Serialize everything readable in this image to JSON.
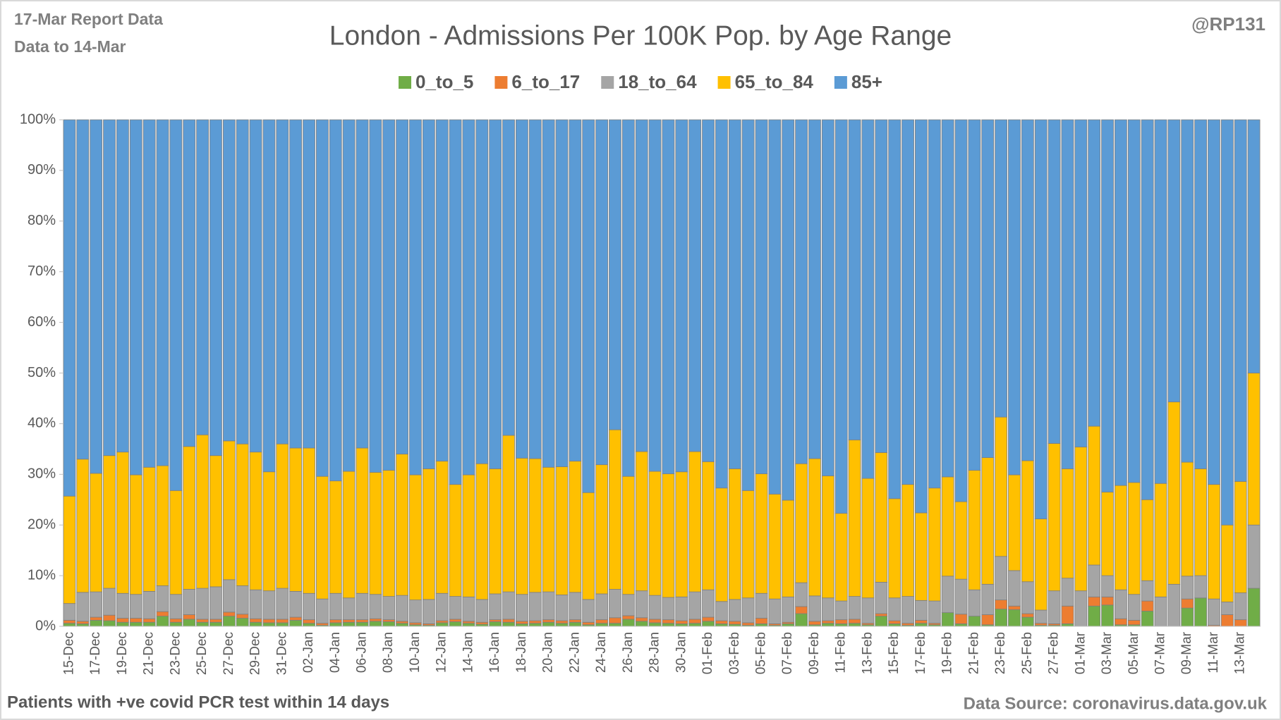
{
  "chart_data": {
    "type": "stacked_bar_percent",
    "title": "London - Admissions Per 100K Pop. by Age Range",
    "annotations": [
      "17-Mar Report Data",
      "Data to 14-Mar",
      "@RP131",
      "Patients with  +ve covid PCR test within 14 days",
      "Data Source: coronavirus.data.gov.uk"
    ],
    "categories": [
      "15-Dec",
      null,
      "17-Dec",
      null,
      "19-Dec",
      null,
      "21-Dec",
      null,
      "23-Dec",
      null,
      "25-Dec",
      null,
      "27-Dec",
      null,
      "29-Dec",
      null,
      "31-Dec",
      null,
      "02-Jan",
      null,
      "04-Jan",
      null,
      "06-Jan",
      null,
      "08-Jan",
      null,
      "10-Jan",
      null,
      "12-Jan",
      null,
      "14-Jan",
      null,
      "16-Jan",
      null,
      "18-Jan",
      null,
      "20-Jan",
      null,
      "22-Jan",
      null,
      "24-Jan",
      null,
      "26-Jan",
      null,
      "28-Jan",
      null,
      "30-Jan",
      null,
      "01-Feb",
      null,
      "03-Feb",
      null,
      "05-Feb",
      null,
      "07-Feb",
      null,
      "09-Feb",
      null,
      "11-Feb",
      null,
      "13-Feb",
      null,
      "15-Feb",
      null,
      "17-Feb",
      null,
      "19-Feb",
      null,
      "21-Feb",
      null,
      "23-Feb",
      null,
      "25-Feb",
      null,
      "27-Feb",
      null,
      "01-Mar",
      null,
      "03-Mar",
      null,
      "05-Mar",
      null,
      "07-Mar",
      null,
      "09-Mar",
      null,
      "11-Mar",
      null,
      "13-Mar",
      null
    ],
    "series": [
      {
        "name": "0_to_5",
        "color": "#70ad47",
        "values": [
          0.6,
          0.5,
          1.2,
          1.1,
          0.8,
          0.8,
          0.8,
          2,
          0.8,
          1.4,
          0.8,
          0.8,
          2,
          1.6,
          0.8,
          0.7,
          0.7,
          1.2,
          0.6,
          0.2,
          0.7,
          0.8,
          0.8,
          1,
          0.9,
          0.6,
          0.3,
          0.2,
          0.7,
          0.9,
          0.6,
          0.4,
          0.9,
          0.8,
          0.5,
          0.6,
          0.8,
          0.6,
          0.8,
          0.3,
          0.6,
          0.6,
          1.4,
          1,
          0.7,
          0.6,
          0.5,
          0.6,
          1,
          0.5,
          0.4,
          0.2,
          0.5,
          0.2,
          0.5,
          2.5,
          0.3,
          0.6,
          0.5,
          0.6,
          0.3,
          2,
          0.5,
          0.2,
          0.6,
          0.3,
          2.7,
          0.5,
          2,
          0.3,
          3.4,
          3.3,
          1.8,
          0.2,
          0.2,
          0.5,
          0,
          4,
          4.2,
          0.3,
          0.3,
          3,
          0,
          0,
          3.6,
          5.6,
          0,
          0,
          0,
          7.5
        ]
      },
      {
        "name": "6_to_17",
        "color": "#ed7d31",
        "values": [
          0.6,
          0.5,
          0.6,
          1.1,
          0.8,
          0.8,
          0.7,
          0.9,
          0.7,
          0.9,
          0.6,
          0.6,
          0.8,
          0.8,
          0.7,
          0.7,
          0.7,
          0.6,
          0.7,
          0.4,
          0.6,
          0.5,
          0.5,
          0.5,
          0.4,
          0.4,
          0.4,
          0.3,
          0.4,
          0.5,
          0.4,
          0.4,
          0.4,
          0.6,
          0.5,
          0.5,
          0.5,
          0.5,
          0.5,
          0.5,
          0.7,
          1.1,
          0.7,
          0.7,
          0.7,
          0.7,
          0.6,
          0.8,
          0.8,
          0.6,
          0.6,
          0.5,
          1.1,
          0.3,
          0.3,
          1.4,
          0.7,
          0.5,
          0.8,
          0.8,
          0.3,
          0.5,
          0.6,
          0.4,
          0.6,
          0.3,
          0,
          1.9,
          0,
          2,
          1.8,
          0.7,
          0.7,
          0.4,
          0.3,
          3.5,
          0,
          1.8,
          1.6,
          1.2,
          0.9,
          2,
          0,
          0,
          1.8,
          0,
          0.2,
          2.3,
          1.3,
          0
        ]
      },
      {
        "name": "18_to_64",
        "color": "#a5a5a5",
        "values": [
          3.3,
          5.7,
          5,
          5.3,
          4.9,
          4.7,
          5.4,
          5.1,
          4.8,
          5,
          6.1,
          6.4,
          6.4,
          5.6,
          5.7,
          5.6,
          6.1,
          5.1,
          5.2,
          4.8,
          5.2,
          4.3,
          5.2,
          4.8,
          4.6,
          5.1,
          4.5,
          4.8,
          5.4,
          4.5,
          4.8,
          4.5,
          5.1,
          5.4,
          5.3,
          5.6,
          5.5,
          5.1,
          5.4,
          4.5,
          5.1,
          5.6,
          4.2,
          5.3,
          4.7,
          4.4,
          4.7,
          5.4,
          5.4,
          3.8,
          4.3,
          4.9,
          4.9,
          4.9,
          5,
          4.7,
          5,
          4.5,
          3.7,
          4.5,
          5,
          6.2,
          4.5,
          5.3,
          3.9,
          4.4,
          7.2,
          6.9,
          5.2,
          6,
          8.6,
          7,
          6.3,
          2.6,
          6.5,
          5.5,
          7,
          6.3,
          4.2,
          5.7,
          5.1,
          4,
          5.8,
          8.3,
          4.5,
          4.4,
          5.2,
          2.5,
          5.3,
          12.5
        ]
      },
      {
        "name": "65_to_84",
        "color": "#ffc000",
        "values": [
          21.2,
          26.3,
          23.4,
          26.2,
          27.9,
          23.6,
          24.5,
          23.7,
          20.5,
          28.2,
          30.3,
          25.9,
          27.4,
          28,
          27.2,
          23.5,
          28.5,
          28.3,
          28.7,
          24.2,
          22.2,
          25,
          28.7,
          24.1,
          24.9,
          27.9,
          24.7,
          25.8,
          26.1,
          22.1,
          24.1,
          26.8,
          24.7,
          30.9,
          26.9,
          26.4,
          24.6,
          25.3,
          25.9,
          21.1,
          25.5,
          31.5,
          23.3,
          27.5,
          24.5,
          24.4,
          24.7,
          27.7,
          25.3,
          22.4,
          25.8,
          21.2,
          23.6,
          20.7,
          19.1,
          23.5,
          27.1,
          24.1,
          17.3,
          30.9,
          23.6,
          25.6,
          19.6,
          22.1,
          17.3,
          22.3,
          19.6,
          15.3,
          23.6,
          25,
          27.5,
          18.9,
          23.9,
          18,
          29.1,
          21.6,
          28.4,
          27.4,
          16.5,
          20.6,
          22.1,
          16,
          22.4,
          36,
          22.5,
          21.1,
          22.6,
          15.2,
          22,
          30
        ]
      },
      {
        "name": "85+",
        "color": "#5b9bd5",
        "values": [
          74.3,
          67,
          69.8,
          66.3,
          65.6,
          70.1,
          68.6,
          68.3,
          73.2,
          64.5,
          62.2,
          66.3,
          63.4,
          64,
          65.6,
          69.5,
          64,
          64.8,
          64.8,
          70.4,
          71.3,
          69.4,
          64.8,
          69.6,
          69.2,
          66,
          70.1,
          68.9,
          67.4,
          72,
          70.1,
          67.9,
          68.9,
          62.3,
          66.8,
          66.9,
          68.6,
          68.5,
          67.4,
          73.6,
          68.1,
          61.2,
          70.4,
          65.5,
          69.4,
          69.9,
          69.5,
          65.5,
          67.5,
          72.7,
          68.9,
          73.2,
          69.9,
          73.9,
          75.1,
          67.9,
          66.9,
          70.3,
          77.7,
          63.2,
          70.8,
          65.7,
          74.8,
          72,
          77.6,
          72.7,
          70.5,
          75.4,
          69.2,
          66.7,
          58.7,
          70.1,
          67.3,
          78.8,
          63.9,
          68.9,
          64.6,
          60.5,
          73.5,
          72.2,
          71.6,
          75,
          71.8,
          55.7,
          67.6,
          68.9,
          72,
          80,
          71.4,
          50
        ]
      }
    ],
    "ylim": [
      0,
      100
    ],
    "yticks": [
      {
        "value": 0,
        "label": "0%"
      },
      {
        "value": 10,
        "label": "10%"
      },
      {
        "value": 20,
        "label": "20%"
      },
      {
        "value": 30,
        "label": "30%"
      },
      {
        "value": 40,
        "label": "40%"
      },
      {
        "value": 50,
        "label": "50%"
      },
      {
        "value": 60,
        "label": "60%"
      },
      {
        "value": 70,
        "label": "70%"
      },
      {
        "value": 80,
        "label": "80%"
      },
      {
        "value": 90,
        "label": "90%"
      },
      {
        "value": 100,
        "label": "100%"
      }
    ],
    "grid": false,
    "legend": "top"
  }
}
